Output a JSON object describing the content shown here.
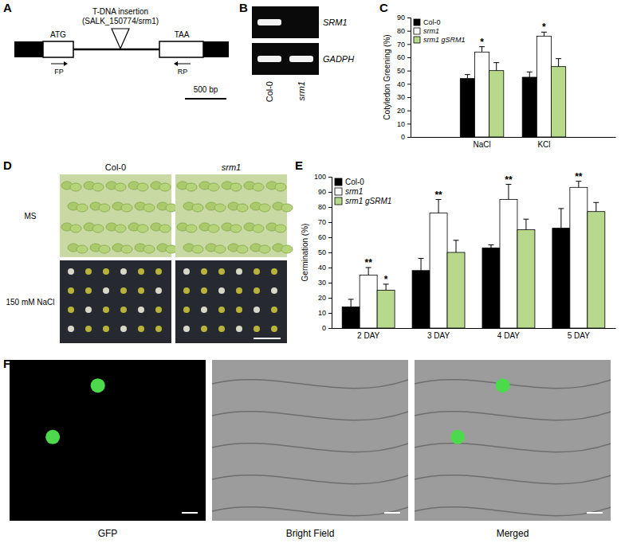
{
  "chart_data": [
    {
      "type": "bar",
      "y_label": "Cotyledon Greening (%)",
      "categories": [
        "NaCl",
        "KCl"
      ],
      "series": [
        {
          "name": "Col-0",
          "color": "#000000",
          "values": [
            44,
            45
          ],
          "errors": [
            3,
            4
          ]
        },
        {
          "name": "srm1",
          "color": "#ffffff",
          "values": [
            64,
            76
          ],
          "errors": [
            4,
            3
          ],
          "significance": [
            "*",
            "*"
          ]
        },
        {
          "name": "srm1 gSRM1",
          "color": "#b8d98c",
          "values": [
            50,
            53
          ],
          "errors": [
            6,
            6
          ]
        }
      ],
      "ylim": [
        0,
        90
      ],
      "yticks": [
        0,
        10,
        20,
        30,
        40,
        50,
        60,
        70,
        80,
        90
      ],
      "legend": "top-left",
      "grid": false
    },
    {
      "type": "bar",
      "y_label": "Germination (%)",
      "categories": [
        "2 DAY",
        "3 DAY",
        "4 DAY",
        "5 DAY"
      ],
      "series": [
        {
          "name": "Col-0",
          "color": "#000000",
          "values": [
            14,
            38,
            53,
            66
          ],
          "errors": [
            5,
            8,
            2,
            13
          ]
        },
        {
          "name": "srm1",
          "color": "#ffffff",
          "values": [
            35,
            76,
            85,
            93
          ],
          "errors": [
            5,
            9,
            10,
            4
          ],
          "significance": [
            "**",
            "**",
            "**",
            "**"
          ]
        },
        {
          "name": "srm1 gSRM1",
          "color": "#b8d98c",
          "values": [
            25,
            50,
            65,
            77
          ],
          "errors": [
            4,
            8,
            7,
            6
          ],
          "significance": [
            "*",
            null,
            null,
            null
          ]
        }
      ],
      "ylim": [
        0,
        100
      ],
      "yticks": [
        0,
        10,
        20,
        30,
        40,
        50,
        60,
        70,
        80,
        90,
        100
      ],
      "legend": "top-left",
      "grid": false
    }
  ],
  "panel_labels": [
    "A",
    "B",
    "C",
    "D",
    "E",
    "F"
  ],
  "gene_diagram": {
    "insertion_label": "T-DNA insertion",
    "insertion_line": "(SALK_150774/srm1)",
    "start_codon": "ATG",
    "stop_codon": "TAA",
    "forward_primer": "FP",
    "reverse_primer": "RP",
    "scale_bar": "500 bp"
  },
  "gel": {
    "genes": [
      "SRM1",
      "GADPH"
    ],
    "lanes": [
      "Col-0",
      "srm1"
    ],
    "bands": [
      [
        true,
        false
      ],
      [
        true,
        true
      ]
    ]
  },
  "seedling_photos": {
    "columns": [
      "Col-0",
      "srm1"
    ],
    "rows": [
      "MS",
      "150 mM NaCl"
    ]
  },
  "microscopy": {
    "channels": [
      "GFP",
      "Bright Field",
      "Merged"
    ]
  }
}
